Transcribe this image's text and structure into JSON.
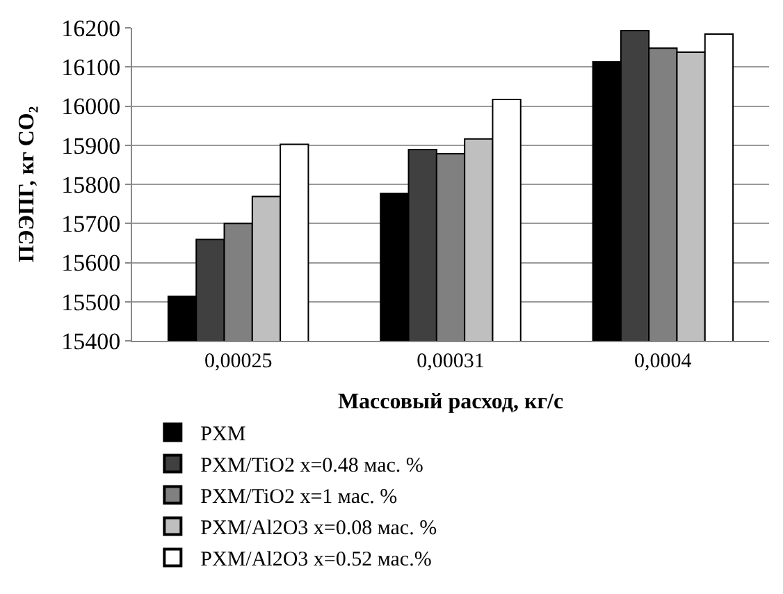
{
  "chart_data": {
    "type": "bar",
    "xlabel": "Массовый расход, кг/с",
    "ylabel": "ПЭЭПГ, кг CO₂",
    "categories": [
      "0,00025",
      "0,00031",
      "0,0004"
    ],
    "series": [
      {
        "name": "PXM",
        "color": "#000000",
        "values": [
          15514,
          15777,
          16113
        ]
      },
      {
        "name": "PXM/TiO2 x=0.48 мас. %",
        "color": "#404040",
        "values": [
          15659,
          15889,
          16193
        ]
      },
      {
        "name": "PXM/TiO2 x=1 мас. %",
        "color": "#808080",
        "values": [
          15700,
          15878,
          16148
        ]
      },
      {
        "name": "PXM/Al2O3 x=0.08 мас. %",
        "color": "#bfbfbf",
        "values": [
          15769,
          15916,
          16138
        ]
      },
      {
        "name": "PXM/Al2O3 x=0.52 мас.%",
        "color": "#ffffff",
        "values": [
          15902,
          16017,
          16184
        ]
      }
    ],
    "ylim": [
      15400,
      16200
    ],
    "yticks": [
      15400,
      15500,
      15600,
      15700,
      15800,
      15900,
      16000,
      16100,
      16200
    ],
    "grid": "y",
    "legend": "bottom"
  }
}
